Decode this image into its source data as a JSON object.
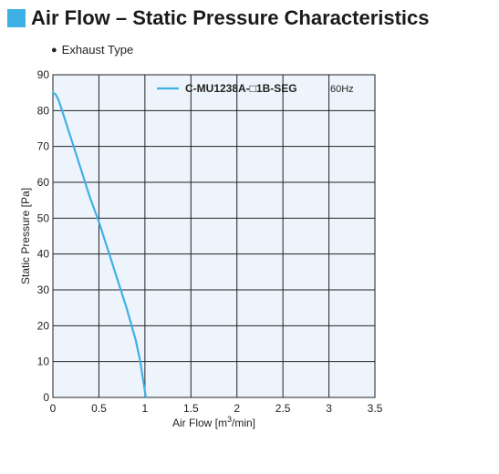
{
  "header": {
    "title": "Air Flow – Static Pressure Characteristics",
    "accent_color": "#3fb0e6"
  },
  "subtitle": {
    "bullet_icon": "black-circle-icon",
    "text": "Exhaust Type"
  },
  "chart_data": {
    "type": "line",
    "xlabel_main": "Air Flow [m",
    "xlabel_sup": "3",
    "xlabel_tail": "/min]",
    "ylabel": "Static Pressure [Pa]",
    "xlim": [
      0,
      3.5
    ],
    "ylim": [
      0,
      90
    ],
    "x_ticks": [
      "0",
      "0.5",
      "1",
      "1.5",
      "2",
      "2.5",
      "3",
      "3.5"
    ],
    "y_ticks": [
      "0",
      "10",
      "20",
      "30",
      "40",
      "50",
      "60",
      "70",
      "80",
      "90"
    ],
    "grid": true,
    "plot_background": "#eef4fb",
    "legend_position": "top-right",
    "series": [
      {
        "name": "C-MU1238A-□1B-SEG",
        "frequency": "60Hz",
        "color": "#3fb0e6",
        "x": [
          0,
          0.03,
          0.06,
          0.1,
          0.15,
          0.2,
          0.3,
          0.4,
          0.5,
          0.6,
          0.7,
          0.8,
          0.9,
          0.95,
          0.98,
          1.01
        ],
        "y": [
          85,
          84.5,
          83,
          80,
          76,
          72,
          64,
          56,
          49,
          41,
          33,
          25,
          16,
          10,
          5,
          0
        ]
      }
    ]
  }
}
